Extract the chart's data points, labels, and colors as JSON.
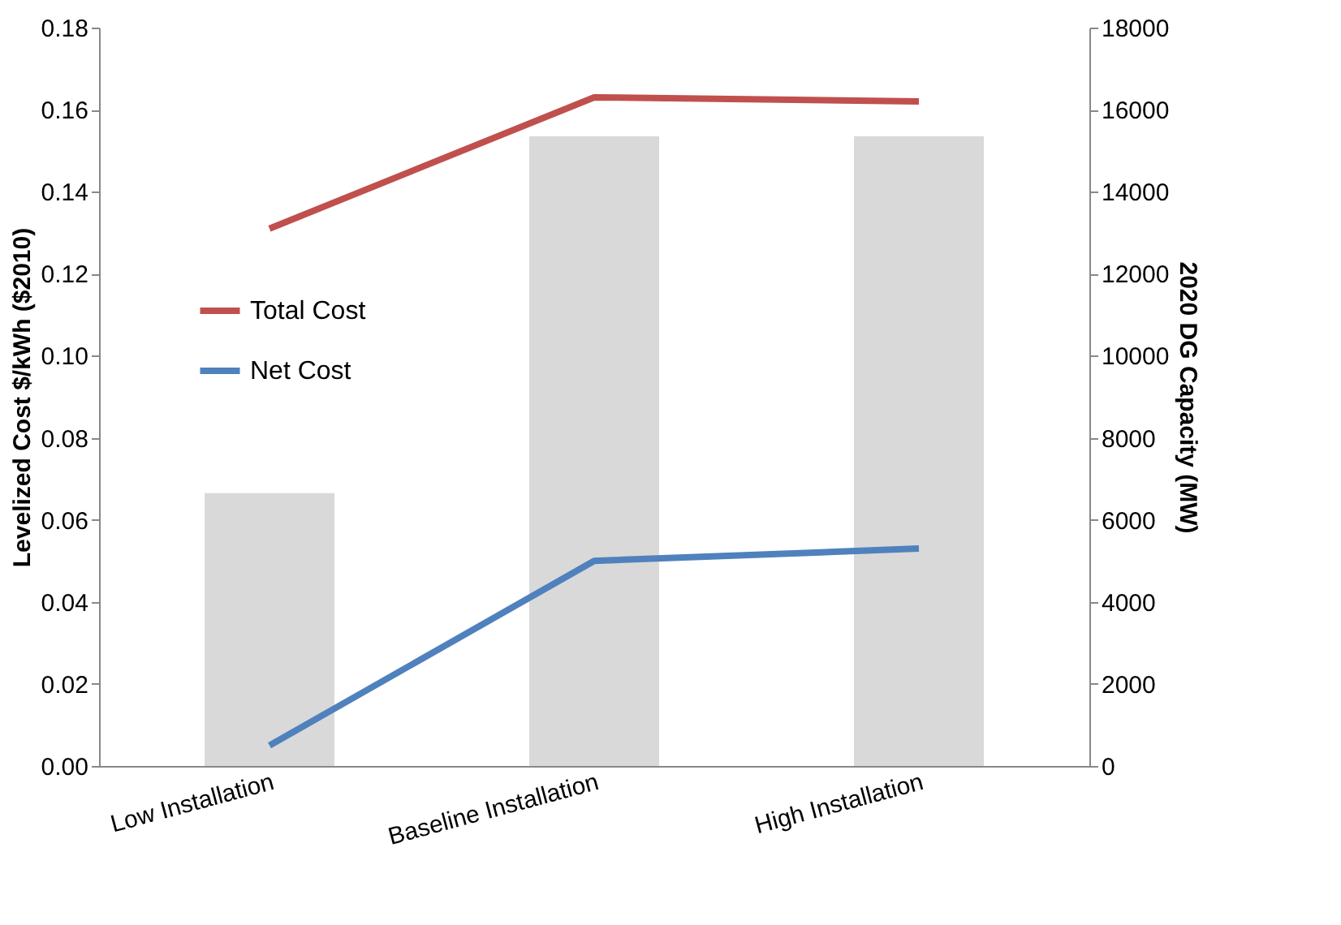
{
  "chart_data": {
    "type": "line",
    "ylabel": "Levelized Cost $/kWh ($2010)",
    "y2label": "2020 DG Capacity (MW)",
    "categories": [
      "Low Installation",
      "Baseline Installation",
      "High Installation"
    ],
    "series": [
      {
        "type": "bar",
        "axis": "y2",
        "color": "#d9d9d9",
        "values": [
          6650,
          15350,
          15350
        ]
      },
      {
        "name": "Total Cost",
        "color": "#c0504d",
        "values": [
          0.131,
          0.163,
          0.162
        ]
      },
      {
        "name": "Net Cost",
        "color": "#4f81bd",
        "values": [
          0.005,
          0.05,
          0.053
        ]
      }
    ],
    "ylim": [
      0,
      0.18
    ],
    "yticks": [
      {
        "value": 0,
        "label": "0.00"
      },
      {
        "value": 0.02,
        "label": "0.02"
      },
      {
        "value": 0.04,
        "label": "0.04"
      },
      {
        "value": 0.06,
        "label": "0.06"
      },
      {
        "value": 0.08,
        "label": "0.08"
      },
      {
        "value": 0.1,
        "label": "0.10"
      },
      {
        "value": 0.12,
        "label": "0.12"
      },
      {
        "value": 0.14,
        "label": "0.14"
      },
      {
        "value": 0.16,
        "label": "0.16"
      },
      {
        "value": 0.18,
        "label": "0.18"
      }
    ],
    "y2lim": [
      0,
      18000
    ],
    "y2ticks": [
      0,
      2000,
      4000,
      6000,
      8000,
      10000,
      12000,
      14000,
      16000,
      18000
    ],
    "grid": false,
    "legend": "left",
    "marker": "none",
    "line_style": "solid"
  }
}
